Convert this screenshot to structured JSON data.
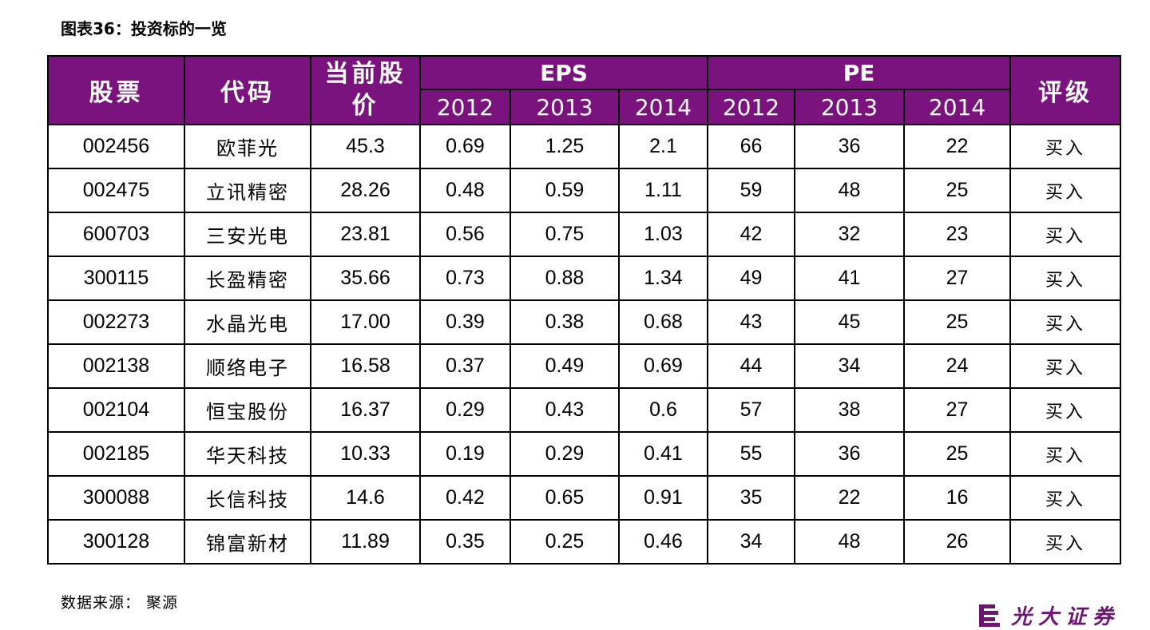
{
  "title": "图表36：投资标的一览",
  "header": {
    "stock": "股票",
    "code": "代码",
    "price": "当前股价",
    "eps": "EPS",
    "pe": "PE",
    "rating": "评级",
    "years": [
      "2012",
      "2013",
      "2014"
    ]
  },
  "rows": [
    {
      "code": "002456",
      "name": "欧菲光",
      "price": "45.3",
      "eps": [
        "0.69",
        "1.25",
        "2.1"
      ],
      "pe": [
        "66",
        "36",
        "22"
      ],
      "rating": "买入"
    },
    {
      "code": "002475",
      "name": "立讯精密",
      "price": "28.26",
      "eps": [
        "0.48",
        "0.59",
        "1.11"
      ],
      "pe": [
        "59",
        "48",
        "25"
      ],
      "rating": "买入"
    },
    {
      "code": "600703",
      "name": "三安光电",
      "price": "23.81",
      "eps": [
        "0.56",
        "0.75",
        "1.03"
      ],
      "pe": [
        "42",
        "32",
        "23"
      ],
      "rating": "买入"
    },
    {
      "code": "300115",
      "name": "长盈精密",
      "price": "35.66",
      "eps": [
        "0.73",
        "0.88",
        "1.34"
      ],
      "pe": [
        "49",
        "41",
        "27"
      ],
      "rating": "买入"
    },
    {
      "code": "002273",
      "name": "水晶光电",
      "price": "17.00",
      "eps": [
        "0.39",
        "0.38",
        "0.68"
      ],
      "pe": [
        "43",
        "45",
        "25"
      ],
      "rating": "买入"
    },
    {
      "code": "002138",
      "name": "顺络电子",
      "price": "16.58",
      "eps": [
        "0.37",
        "0.49",
        "0.69"
      ],
      "pe": [
        "44",
        "34",
        "24"
      ],
      "rating": "买入"
    },
    {
      "code": "002104",
      "name": "恒宝股份",
      "price": "16.37",
      "eps": [
        "0.29",
        "0.43",
        "0.6"
      ],
      "pe": [
        "57",
        "38",
        "27"
      ],
      "rating": "买入"
    },
    {
      "code": "002185",
      "name": "华天科技",
      "price": "10.33",
      "eps": [
        "0.19",
        "0.29",
        "0.41"
      ],
      "pe": [
        "55",
        "36",
        "25"
      ],
      "rating": "买入"
    },
    {
      "code": "300088",
      "name": "长信科技",
      "price": "14.6",
      "eps": [
        "0.42",
        "0.65",
        "0.91"
      ],
      "pe": [
        "35",
        "22",
        "16"
      ],
      "rating": "买入"
    },
    {
      "code": "300128",
      "name": "锦富新材",
      "price": "11.89",
      "eps": [
        "0.35",
        "0.25",
        "0.46"
      ],
      "pe": [
        "34",
        "48",
        "26"
      ],
      "rating": "买入"
    }
  ],
  "source": "数据来源： 聚源",
  "logo": {
    "text": "光大证券",
    "color": "#6e1473",
    "icon": "broker-logo-icon"
  },
  "colors": {
    "header_bg": "#7b137f",
    "header_text": "#ffffff"
  }
}
